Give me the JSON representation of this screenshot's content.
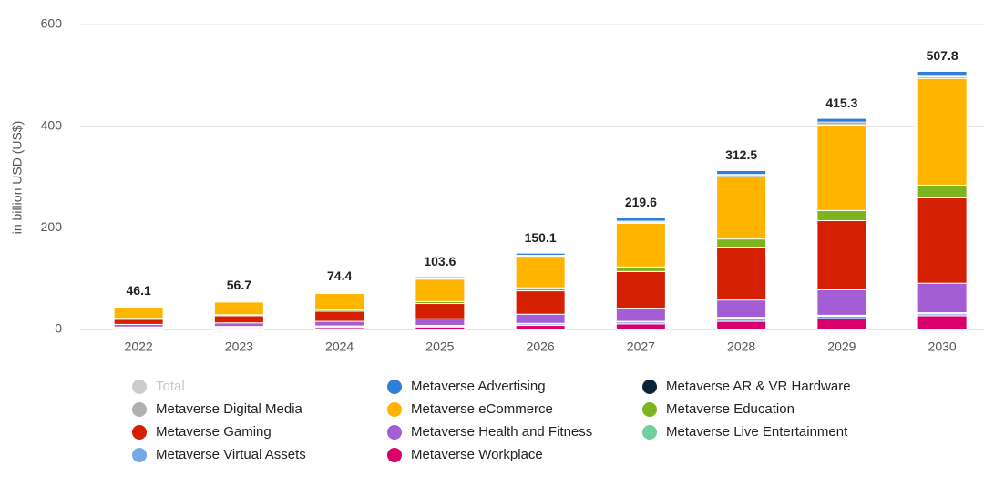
{
  "chart_data": {
    "type": "stacked_bar",
    "y_label": "in billion USD (US$)",
    "categories": [
      "2022",
      "2023",
      "2024",
      "2025",
      "2026",
      "2027",
      "2028",
      "2029",
      "2030"
    ],
    "ylim": [
      0,
      600
    ],
    "yticks": [
      0,
      200,
      400,
      600
    ],
    "grid": true,
    "legend": "bottom",
    "series": [
      {
        "name": "Total",
        "color": "#c8c8c8",
        "visible": false,
        "values": [
          46.1,
          56.7,
          74.4,
          103.6,
          150.1,
          219.6,
          312.5,
          415.3,
          507.8
        ]
      },
      {
        "name": "Metaverse Advertising",
        "color": "#2f7ed8",
        "values": [
          0.6,
          1.2,
          1.4,
          2.6,
          4.1,
          6.6,
          7.5,
          7.3,
          7.8
        ]
      },
      {
        "name": "Metaverse AR & VR Hardware",
        "color": "#0d233a",
        "values": [
          0.5,
          0.5,
          1,
          1,
          1,
          2,
          2,
          3,
          3
        ]
      },
      {
        "name": "Metaverse Digital Media",
        "color": "#b0b0b0",
        "values": [
          1,
          1,
          1,
          1,
          1,
          2,
          3,
          3,
          3
        ]
      },
      {
        "name": "Metaverse eCommerce",
        "color": "#ffb400",
        "values": [
          22,
          25,
          32,
          44,
          62,
          86,
          122,
          168,
          210
        ]
      },
      {
        "name": "Metaverse Education",
        "color": "#7bb41f",
        "values": [
          2,
          2,
          3,
          4,
          6,
          9,
          16,
          20,
          25
        ]
      },
      {
        "name": "Metaverse Gaming",
        "color": "#d41f00",
        "values": [
          10,
          14,
          20,
          30,
          46,
          72,
          104,
          136,
          168
        ]
      },
      {
        "name": "Metaverse Health and Fitness",
        "color": "#a35ed6",
        "values": [
          5,
          7,
          9,
          13,
          18,
          26,
          34,
          50,
          58
        ]
      },
      {
        "name": "Metaverse Live Entertainment",
        "color": "#6fcf9f",
        "values": [
          1,
          1,
          1,
          1,
          1,
          1,
          2,
          2,
          2
        ]
      },
      {
        "name": "Metaverse Virtual Assets",
        "color": "#78a8e6",
        "values": [
          1,
          2,
          2,
          2,
          3,
          4,
          6,
          5,
          4
        ]
      },
      {
        "name": "Metaverse Workplace",
        "color": "#d9006c",
        "values": [
          3,
          3,
          4,
          5,
          8,
          11,
          16,
          21,
          27
        ]
      }
    ]
  }
}
